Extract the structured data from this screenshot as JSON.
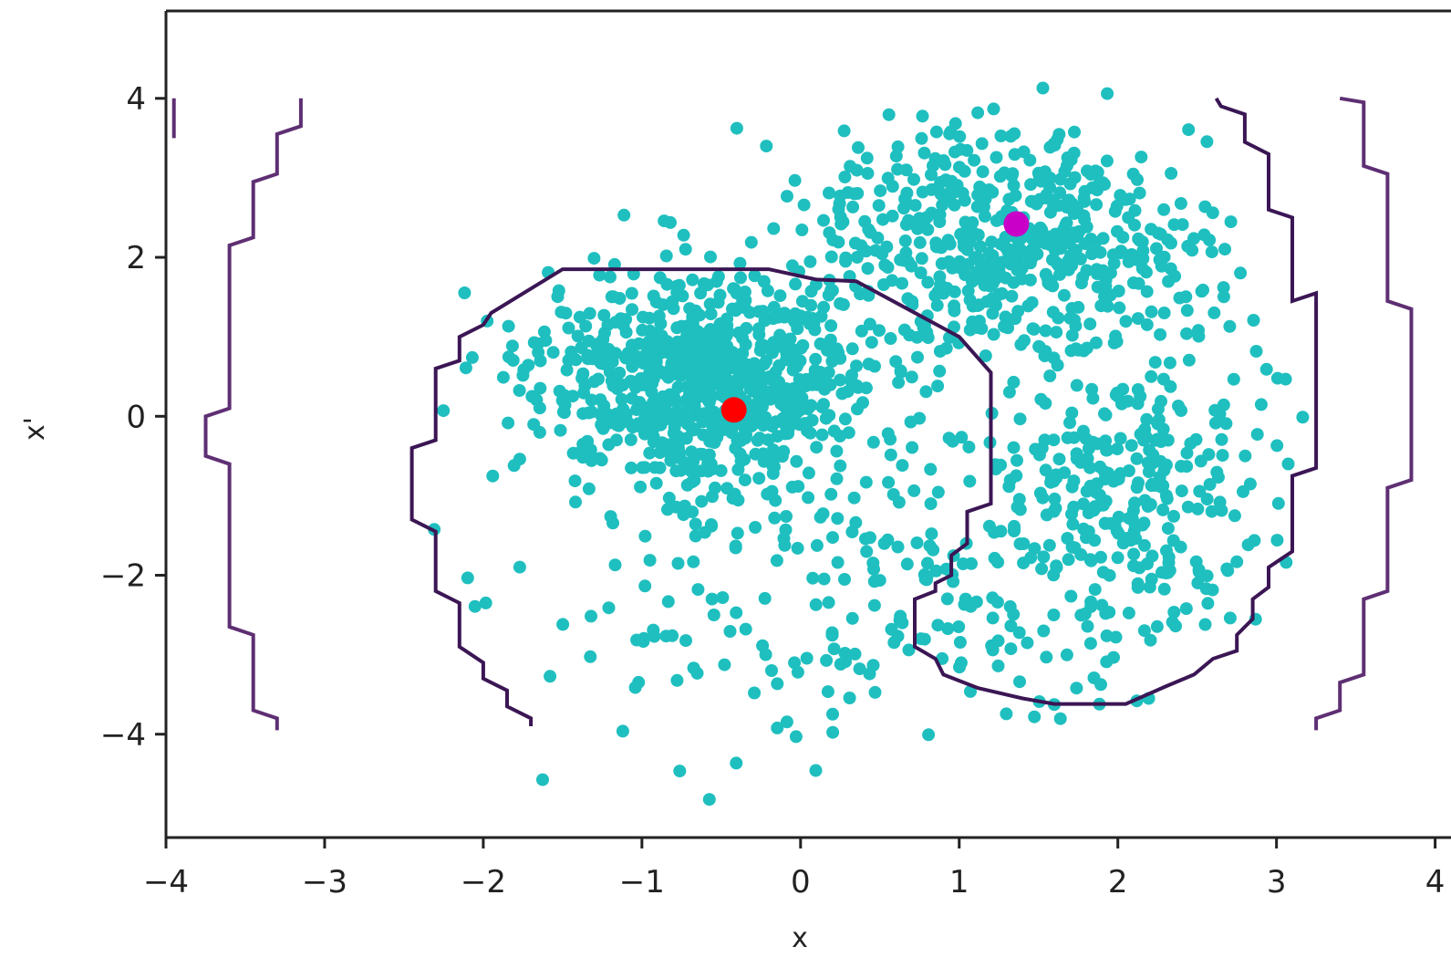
{
  "chart_data": {
    "type": "scatter",
    "title": "",
    "xlabel": "x",
    "ylabel": "x'",
    "xlim": [
      -4,
      4.1
    ],
    "ylim": [
      -5.3,
      5.1
    ],
    "grid": false,
    "x_ticks": [
      -4,
      -3,
      -2,
      -1,
      0,
      1,
      2,
      3,
      4
    ],
    "y_ticks": [
      -4,
      -2,
      0,
      2,
      4
    ],
    "x_tick_labels": [
      "−4",
      "−3",
      "−2",
      "−1",
      "0",
      "1",
      "2",
      "3",
      "4"
    ],
    "y_tick_labels": [
      "−4",
      "−2",
      "0",
      "2",
      "4"
    ],
    "colors": {
      "scatter": "#1fbfbf",
      "contour": "#3b1654",
      "contour_outer": "#5e2f73",
      "point_red": "#ff0000",
      "point_magenta": "#c800c8",
      "axis": "#222222"
    },
    "scatter_cloud": {
      "count": 1900,
      "seed": 7
    },
    "special_points": [
      {
        "x": -0.42,
        "y": 0.08,
        "color": "#ff0000"
      },
      {
        "x": 1.36,
        "y": 2.42,
        "color": "#c800c8"
      }
    ],
    "contours": [
      {
        "name": "inner-loop",
        "points": [
          [
            -1.7,
            -3.9
          ],
          [
            -1.7,
            -3.8
          ],
          [
            -1.85,
            -3.65
          ],
          [
            -1.85,
            -3.45
          ],
          [
            -2.0,
            -3.3
          ],
          [
            -2.0,
            -3.1
          ],
          [
            -2.15,
            -2.9
          ],
          [
            -2.15,
            -2.35
          ],
          [
            -2.3,
            -2.2
          ],
          [
            -2.3,
            -1.45
          ],
          [
            -2.45,
            -1.3
          ],
          [
            -2.45,
            -0.4
          ],
          [
            -2.3,
            -0.3
          ],
          [
            -2.3,
            0.6
          ],
          [
            -2.15,
            0.7
          ],
          [
            -2.15,
            1.0
          ],
          [
            -2.0,
            1.15
          ],
          [
            -1.95,
            1.3
          ],
          [
            -1.5,
            1.85
          ],
          [
            -0.2,
            1.85
          ],
          [
            0.1,
            1.72
          ],
          [
            0.35,
            1.7
          ],
          [
            1.0,
            1.0
          ],
          [
            1.2,
            0.55
          ],
          [
            1.2,
            -1.1
          ],
          [
            1.05,
            -1.2
          ],
          [
            1.05,
            -1.6
          ],
          [
            0.95,
            -1.75
          ],
          [
            0.95,
            -2.0
          ],
          [
            0.85,
            -2.1
          ],
          [
            0.85,
            -2.2
          ],
          [
            0.72,
            -2.3
          ],
          [
            0.72,
            -2.9
          ],
          [
            0.85,
            -3.05
          ],
          [
            0.9,
            -3.25
          ],
          [
            1.12,
            -3.42
          ],
          [
            1.4,
            -3.55
          ],
          [
            1.6,
            -3.62
          ],
          [
            2.05,
            -3.62
          ],
          [
            2.3,
            -3.4
          ],
          [
            2.48,
            -3.25
          ],
          [
            2.6,
            -3.05
          ],
          [
            2.75,
            -2.95
          ],
          [
            2.75,
            -2.75
          ],
          [
            2.85,
            -2.55
          ],
          [
            2.85,
            -2.3
          ],
          [
            2.95,
            -2.15
          ],
          [
            2.95,
            -1.9
          ],
          [
            3.1,
            -1.7
          ],
          [
            3.1,
            -0.75
          ],
          [
            3.25,
            -0.65
          ],
          [
            3.25,
            1.55
          ],
          [
            3.1,
            1.45
          ],
          [
            3.1,
            2.5
          ],
          [
            2.95,
            2.6
          ],
          [
            2.95,
            3.3
          ],
          [
            2.8,
            3.45
          ],
          [
            2.8,
            3.8
          ],
          [
            2.65,
            3.9
          ],
          [
            2.62,
            4.0
          ]
        ]
      },
      {
        "name": "left-outer",
        "points": [
          [
            -3.3,
            -3.95
          ],
          [
            -3.3,
            -3.8
          ],
          [
            -3.45,
            -3.7
          ],
          [
            -3.45,
            -2.75
          ],
          [
            -3.6,
            -2.65
          ],
          [
            -3.6,
            -0.6
          ],
          [
            -3.75,
            -0.5
          ],
          [
            -3.75,
            0.0
          ],
          [
            -3.6,
            0.1
          ],
          [
            -3.6,
            2.15
          ],
          [
            -3.45,
            2.25
          ],
          [
            -3.45,
            2.95
          ],
          [
            -3.3,
            3.05
          ],
          [
            -3.3,
            3.55
          ],
          [
            -3.15,
            3.65
          ],
          [
            -3.15,
            4.0
          ]
        ]
      },
      {
        "name": "left-edge",
        "points": [
          [
            -3.95,
            3.5
          ],
          [
            -3.95,
            4.0
          ]
        ]
      },
      {
        "name": "right-outer",
        "points": [
          [
            3.25,
            -3.95
          ],
          [
            3.25,
            -3.8
          ],
          [
            3.4,
            -3.7
          ],
          [
            3.4,
            -3.35
          ],
          [
            3.55,
            -3.25
          ],
          [
            3.55,
            -2.3
          ],
          [
            3.7,
            -2.2
          ],
          [
            3.7,
            -0.9
          ],
          [
            3.85,
            -0.8
          ],
          [
            3.85,
            1.35
          ],
          [
            3.7,
            1.45
          ],
          [
            3.7,
            3.05
          ],
          [
            3.55,
            3.15
          ],
          [
            3.55,
            3.95
          ],
          [
            3.4,
            4.0
          ]
        ]
      }
    ]
  }
}
